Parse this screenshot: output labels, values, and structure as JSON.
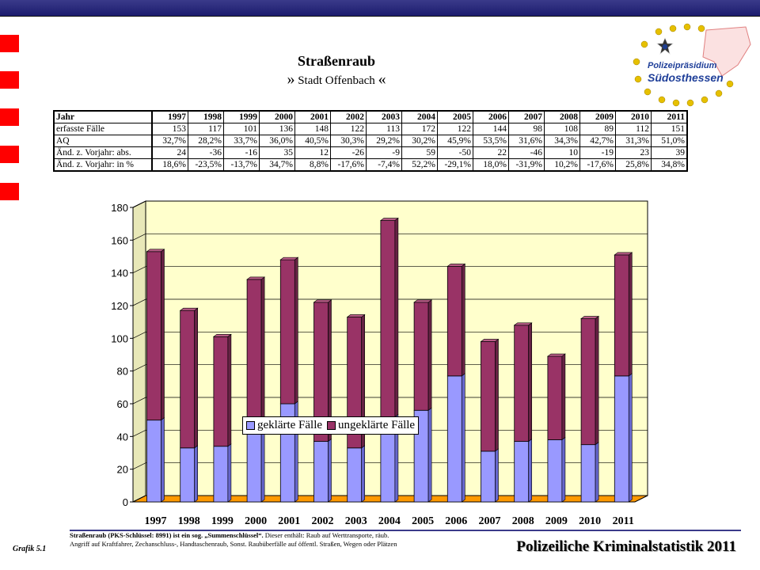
{
  "header": {
    "title": "Straßenraub",
    "subtitle": "Stadt Offenbach",
    "guillemet_open": "»",
    "guillemet_close": "«"
  },
  "logo": {
    "line1": "Polizeipräsidium",
    "line2": "Südosthessen"
  },
  "table": {
    "header_label": "Jahr",
    "years": [
      "1997",
      "1998",
      "1999",
      "2000",
      "2001",
      "2002",
      "2003",
      "2004",
      "2005",
      "2006",
      "2007",
      "2008",
      "2009",
      "2010",
      "2011"
    ],
    "rows": [
      {
        "label": "erfasste Fälle",
        "values": [
          "153",
          "117",
          "101",
          "136",
          "148",
          "122",
          "113",
          "172",
          "122",
          "144",
          "98",
          "108",
          "89",
          "112",
          "151"
        ]
      },
      {
        "label": "AQ",
        "values": [
          "32,7%",
          "28,2%",
          "33,7%",
          "36,0%",
          "40,5%",
          "30,3%",
          "29,2%",
          "30,2%",
          "45,9%",
          "53,5%",
          "31,6%",
          "34,3%",
          "42,7%",
          "31,3%",
          "51,0%"
        ]
      },
      {
        "label": "Änd. z. Vorjahr: abs.",
        "values": [
          "24",
          "-36",
          "-16",
          "35",
          "12",
          "-26",
          "-9",
          "59",
          "-50",
          "22",
          "-46",
          "10",
          "-19",
          "23",
          "39"
        ]
      },
      {
        "label": "Änd. z. Vorjahr: in %",
        "values": [
          "18,6%",
          "-23,5%",
          "-13,7%",
          "34,7%",
          "8,8%",
          "-17,6%",
          "-7,4%",
          "52,2%",
          "-29,1%",
          "18,0%",
          "-31,9%",
          "10,2%",
          "-17,6%",
          "25,8%",
          "34,8%"
        ]
      }
    ]
  },
  "chart_data": {
    "type": "bar",
    "stacked": true,
    "categories": [
      "1997",
      "1998",
      "1999",
      "2000",
      "2001",
      "2002",
      "2003",
      "2004",
      "2005",
      "2006",
      "2007",
      "2008",
      "2009",
      "2010",
      "2011"
    ],
    "series": [
      {
        "name": "geklärte Fälle",
        "values": [
          50,
          33,
          34,
          49,
          60,
          37,
          33,
          52,
          56,
          77,
          31,
          37,
          38,
          35,
          77
        ]
      },
      {
        "name": "ungeklärte Fälle",
        "values": [
          103,
          84,
          67,
          87,
          88,
          85,
          80,
          120,
          66,
          67,
          67,
          71,
          51,
          77,
          74
        ]
      }
    ],
    "ylim": [
      0,
      180
    ],
    "yticks": [
      0,
      20,
      40,
      60,
      80,
      100,
      120,
      140,
      160,
      180
    ],
    "legend_position": "inside-center",
    "colors": {
      "geklaert": "#9999ff",
      "ungeklaert": "#993366",
      "wall": "#ffffcc",
      "floor": "#ff9900"
    }
  },
  "footer": {
    "grafik_label": "Grafik 5.1",
    "note_bold": "Straßenraub (PKS-Schlüssel: 8991) ist ein sog. „Summenschlüssel“.",
    "note_rest": " Dieser enthält: Raub auf Werttransporte, räub. Angriff auf Kraftfahrer, Zechanschluss-, Handtaschenraub, Sonst. Raubüberfälle auf öffentl. Straßen, Wegen oder Plätzen",
    "title": "Polizeiliche Kriminalstatistik 2011"
  }
}
